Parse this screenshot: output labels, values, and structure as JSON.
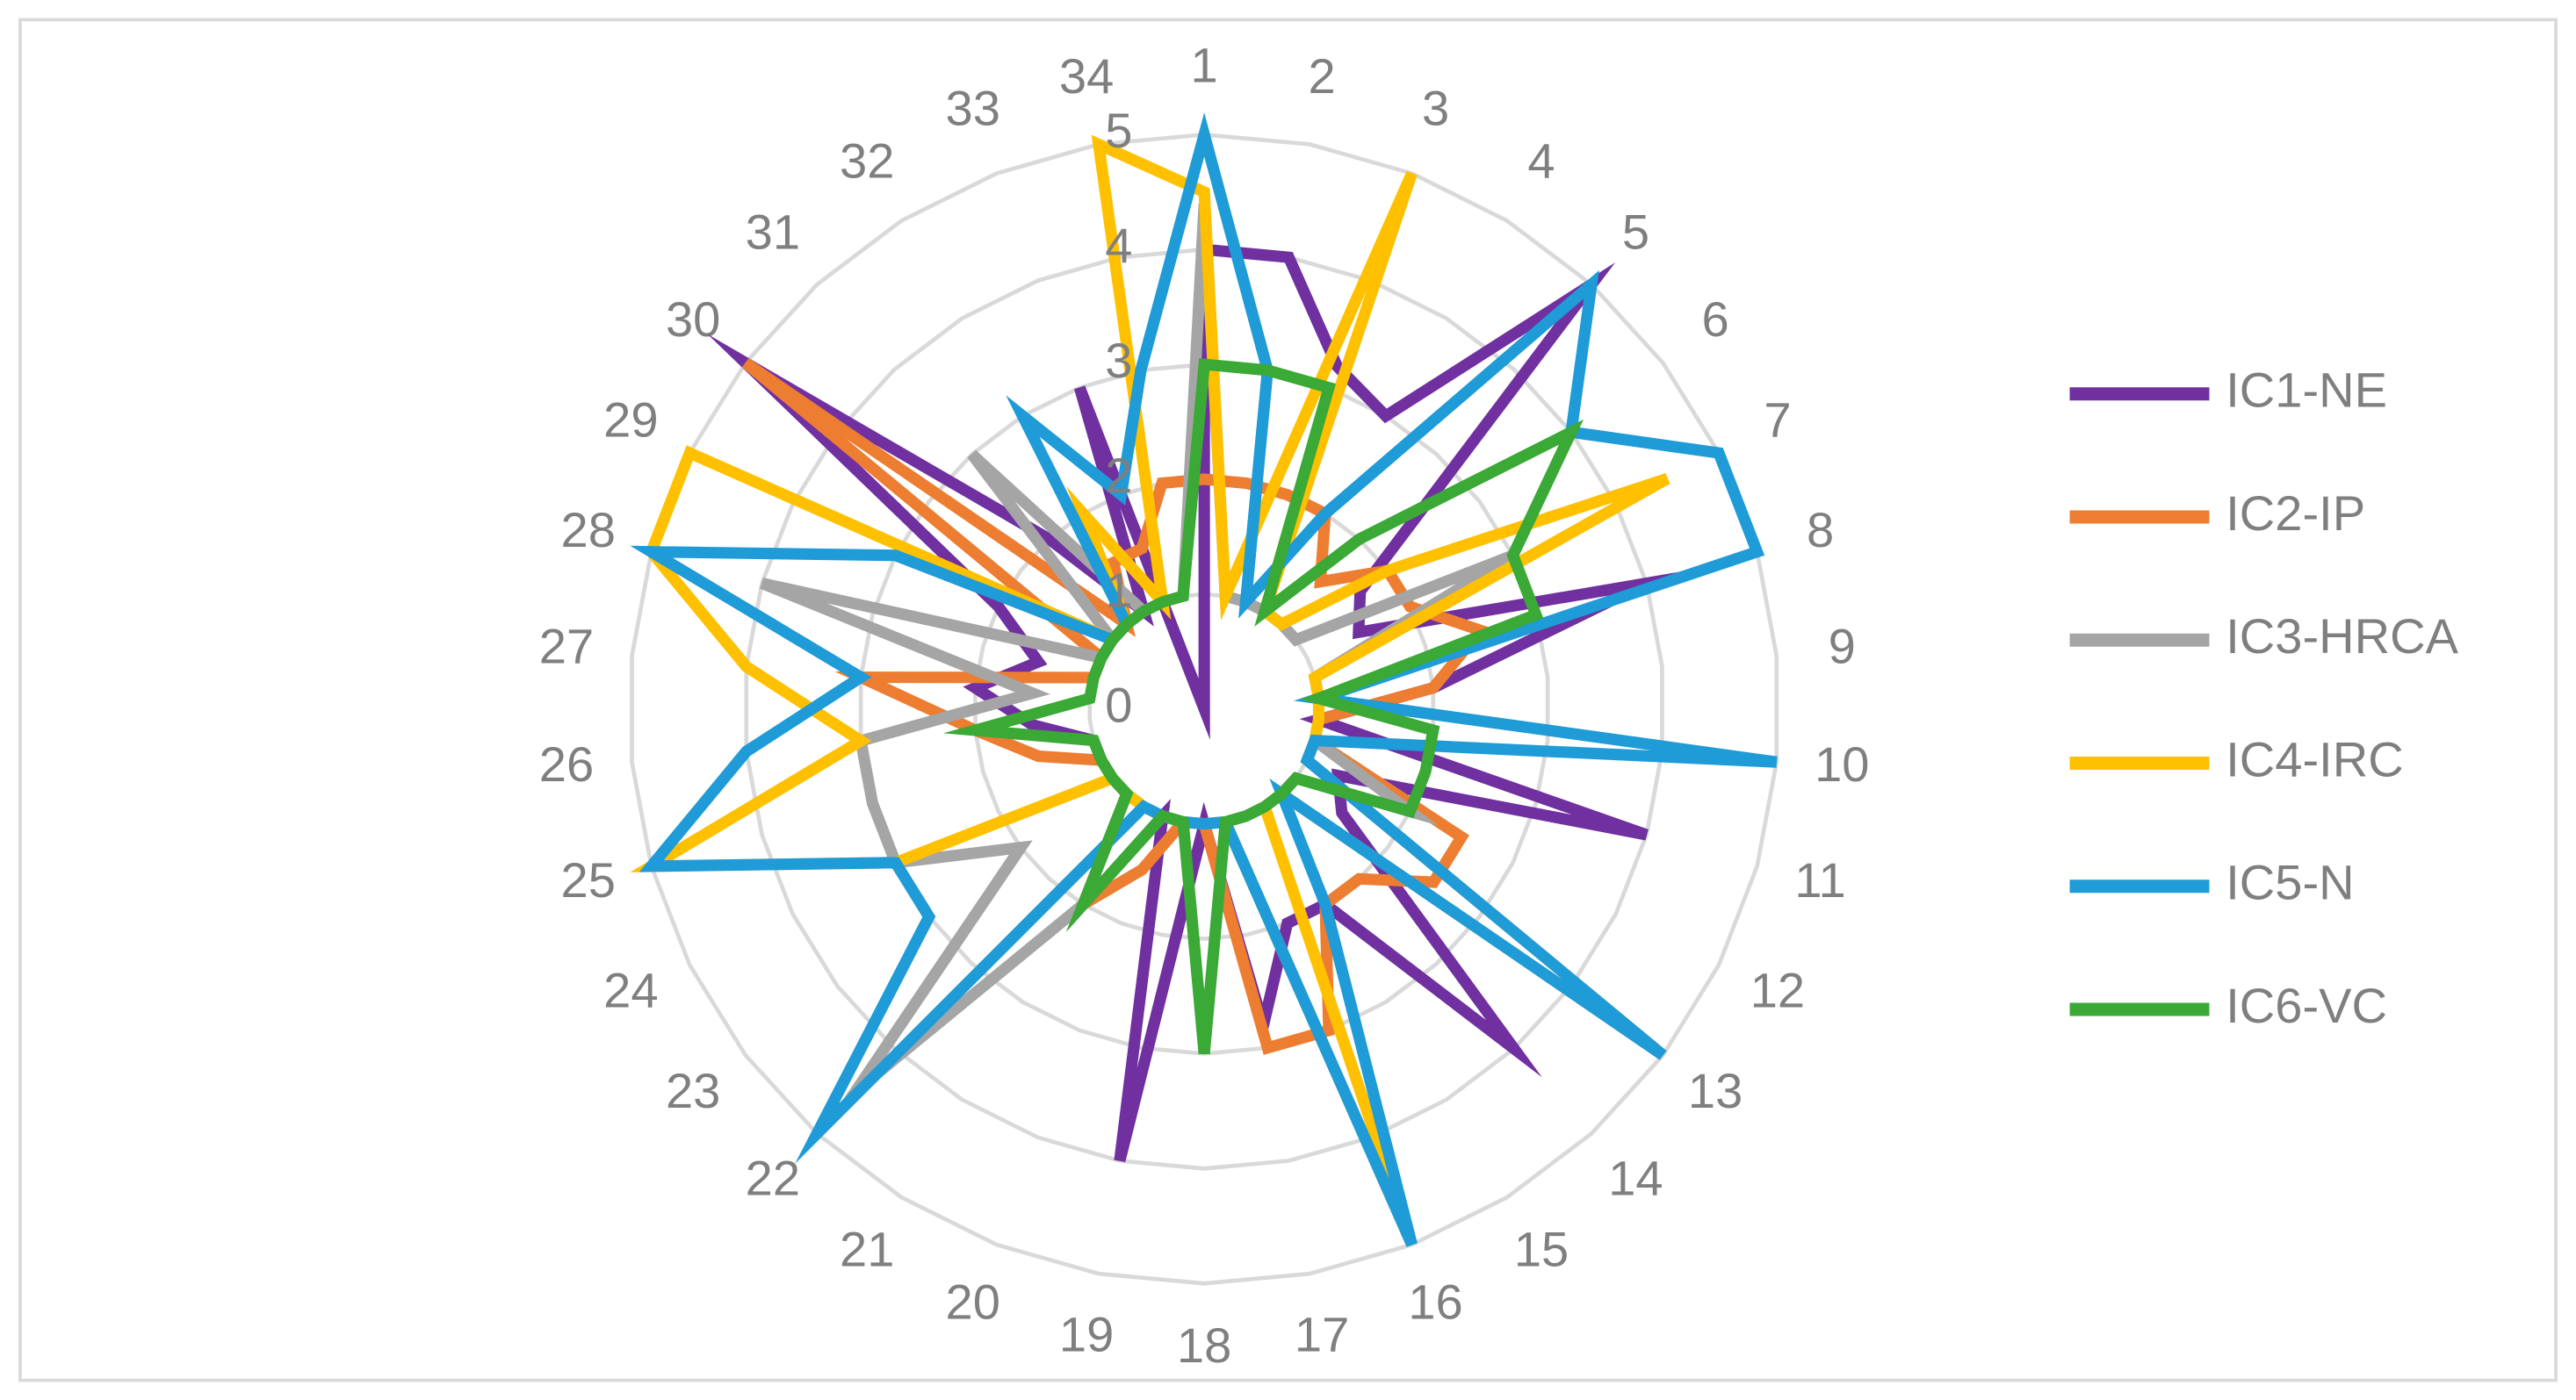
{
  "chart_data": {
    "type": "radar",
    "categories": [
      "1",
      "2",
      "3",
      "4",
      "5",
      "6",
      "7",
      "8",
      "9",
      "10",
      "11",
      "12",
      "13",
      "14",
      "15",
      "16",
      "17",
      "18",
      "19",
      "20",
      "21",
      "22",
      "23",
      "24",
      "25",
      "26",
      "27",
      "28",
      "29",
      "30",
      "31",
      "32",
      "33",
      "34"
    ],
    "rlim": [
      0,
      5
    ],
    "rticks": [
      0,
      1,
      2,
      3,
      4,
      5
    ],
    "grid": true,
    "legend": "right",
    "series": [
      {
        "name": "IC1-NE",
        "color": "#7030a0",
        "values": [
          4,
          4,
          3.2,
          3,
          5,
          1.7,
          1.5,
          4,
          2,
          1,
          4,
          1.3,
          1.5,
          4,
          2,
          2,
          2.8,
          1,
          4,
          1,
          2,
          1,
          1,
          1,
          1,
          1.5,
          2,
          1.5,
          2,
          5,
          2,
          1,
          3,
          0
        ]
      },
      {
        "name": "IC2-IP",
        "color": "#ed7d31",
        "values": [
          2,
          2,
          2,
          2,
          1.5,
          2,
          2,
          2.5,
          2,
          1,
          1,
          2.5,
          2.5,
          2,
          2,
          3,
          3,
          1,
          1,
          1.5,
          2,
          1,
          1,
          1,
          1.5,
          2,
          3,
          1,
          1,
          5,
          1,
          1.5,
          1.5,
          2
        ]
      },
      {
        "name": "IC3-HRCA",
        "color": "#a5a5a5",
        "values": [
          4.4,
          1,
          1,
          1,
          1,
          1,
          3,
          1,
          1,
          1,
          1,
          2,
          1,
          1,
          1,
          1,
          1,
          1,
          1,
          1,
          2,
          4.5,
          2,
          3,
          3,
          3,
          1.5,
          4,
          1,
          1,
          3,
          1,
          1,
          1
        ]
      },
      {
        "name": "IC4-IRC",
        "color": "#ffc000",
        "values": [
          4.5,
          1,
          5,
          1,
          1,
          2,
          4.5,
          1,
          1,
          1,
          1,
          1,
          5,
          1,
          1,
          5,
          1,
          1,
          1,
          1,
          1,
          1,
          1,
          3,
          5,
          3,
          4,
          5,
          5,
          1,
          1,
          2,
          1,
          5
        ]
      },
      {
        "name": "IC5-N",
        "color": "#1f9bd7",
        "values": [
          5,
          3,
          1,
          2,
          5,
          4,
          5,
          5,
          1,
          5,
          1,
          1,
          5,
          1,
          2,
          5,
          1,
          1,
          1,
          1,
          1,
          5,
          3,
          3,
          5,
          4,
          3,
          5,
          3,
          1,
          1,
          3,
          2,
          3
        ]
      },
      {
        "name": "IC6-VC",
        "color": "#3aa935",
        "values": [
          3,
          3,
          3,
          1,
          2,
          4,
          3,
          3,
          1,
          2,
          2,
          2,
          1,
          1,
          1,
          1,
          1,
          3,
          1,
          1,
          2,
          1,
          1,
          1,
          1,
          2,
          1,
          1,
          1,
          1,
          1,
          1,
          1,
          1
        ]
      }
    ]
  }
}
